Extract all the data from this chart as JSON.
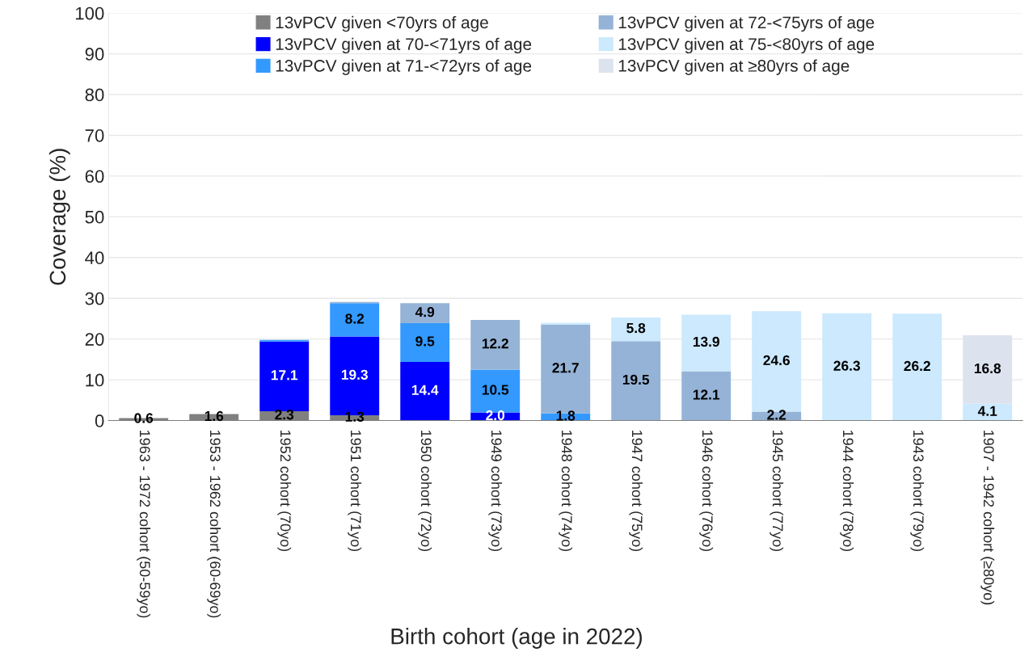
{
  "chart_data": {
    "type": "bar",
    "stacked": true,
    "xlabel": "Birth cohort (age in 2022)",
    "ylabel": "Coverage (%)",
    "categories": [
      "1963 - 1972 cohort (50-59yo)",
      "1953 - 1962 cohort (60-69yo)",
      "1952 cohort (70yo)",
      "1951 cohort (71yo)",
      "1950 cohort (72yo)",
      "1949 cohort (73yo)",
      "1948 cohort (74yo)",
      "1947 cohort (75yo)",
      "1946 cohort (76yo)",
      "1945 cohort (77yo)",
      "1944 cohort (78yo)",
      "1943 cohort (79yo)",
      "1907 - 1942 cohort (≥80yo)"
    ],
    "series": [
      {
        "name": "13vPCV given <70yrs of age",
        "color": "#808080",
        "values": [
          0.6,
          1.6,
          2.3,
          1.3,
          null,
          null,
          null,
          null,
          null,
          null,
          null,
          null,
          null
        ],
        "value_labels": [
          "0.6",
          "1.6",
          "2.3",
          "1.3",
          null,
          null,
          null,
          null,
          null,
          null,
          null,
          null,
          null
        ]
      },
      {
        "name": "13vPCV given at 70-<71yrs of age",
        "color": "#0000ff",
        "values": [
          null,
          null,
          17.1,
          19.3,
          14.4,
          2.0,
          null,
          null,
          null,
          null,
          null,
          null,
          null
        ],
        "value_labels": [
          null,
          null,
          "17.1",
          "19.3",
          "14.4",
          "2.0",
          null,
          null,
          null,
          null,
          null,
          null,
          null
        ]
      },
      {
        "name": "13vPCV given at 71-<72yrs of age",
        "color": "#3399ff",
        "values": [
          null,
          null,
          0.4,
          8.2,
          9.5,
          10.5,
          1.8,
          null,
          null,
          null,
          null,
          null,
          null
        ],
        "value_labels": [
          null,
          null,
          null,
          "8.2",
          "9.5",
          "10.5",
          "1.8",
          null,
          null,
          null,
          null,
          null,
          null
        ]
      },
      {
        "name": "13vPCV given at 72-<75yrs of age",
        "color": "#95b3d7",
        "values": [
          null,
          null,
          null,
          0.3,
          4.9,
          12.2,
          21.7,
          19.5,
          12.1,
          2.2,
          null,
          null,
          null
        ],
        "value_labels": [
          null,
          null,
          null,
          null,
          "4.9",
          "12.2",
          "21.7",
          "19.5",
          "12.1",
          "2.2",
          null,
          null,
          null
        ]
      },
      {
        "name": "13vPCV given at 75-<80yrs of age",
        "color": "#cce9fd",
        "values": [
          null,
          null,
          null,
          null,
          null,
          null,
          0.5,
          5.8,
          13.9,
          24.6,
          26.3,
          26.2,
          4.1
        ],
        "value_labels": [
          null,
          null,
          null,
          null,
          null,
          null,
          null,
          "5.8",
          "13.9",
          "24.6",
          "26.3",
          "26.2",
          "4.1"
        ]
      },
      {
        "name": "13vPCV given at ≥80yrs of age",
        "color": "#dce3ef",
        "values": [
          null,
          null,
          null,
          null,
          null,
          null,
          null,
          null,
          null,
          null,
          null,
          null,
          16.8
        ],
        "value_labels": [
          null,
          null,
          null,
          null,
          null,
          null,
          null,
          null,
          null,
          null,
          null,
          null,
          "16.8"
        ]
      }
    ],
    "ylim": [
      0,
      100
    ],
    "yticks": [
      0,
      10,
      20,
      30,
      40,
      50,
      60,
      70,
      80,
      90,
      100
    ],
    "grid": "y",
    "legend": "top"
  }
}
